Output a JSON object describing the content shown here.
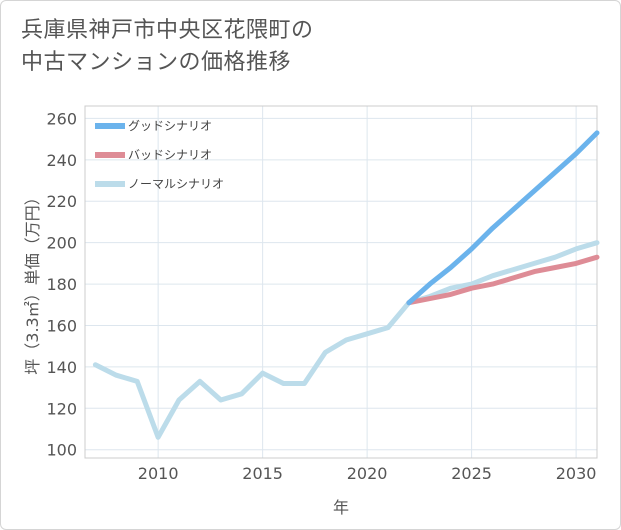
{
  "title_lines": [
    "兵庫県神戸市中央区花隈町の",
    "中古マンションの価格推移"
  ],
  "chart_data": {
    "type": "line",
    "title": "兵庫県神戸市中央区花隈町の中古マンションの価格推移",
    "xlabel": "年",
    "ylabel": "坪（3.3㎡）単価（万円）",
    "xlim": [
      2006.5,
      2031
    ],
    "ylim": [
      96,
      266
    ],
    "xticks": [
      2010,
      2015,
      2020,
      2025,
      2030
    ],
    "yticks": [
      100,
      120,
      140,
      160,
      180,
      200,
      220,
      240,
      260
    ],
    "grid": true,
    "legend_position": "top-left",
    "series": [
      {
        "name": "グッドシナリオ",
        "color": "#6bb3ec",
        "x": [
          2022,
          2023,
          2024,
          2025,
          2026,
          2027,
          2028,
          2029,
          2030,
          2031
        ],
        "values": [
          171,
          180,
          188,
          197,
          207,
          216,
          225,
          234,
          243,
          253
        ]
      },
      {
        "name": "バッドシナリオ",
        "color": "#de8c96",
        "x": [
          2022,
          2023,
          2024,
          2025,
          2026,
          2027,
          2028,
          2029,
          2030,
          2031
        ],
        "values": [
          171,
          173,
          175,
          178,
          180,
          183,
          186,
          188,
          190,
          193
        ]
      },
      {
        "name": "ノーマルシナリオ",
        "color": "#bcdcea",
        "x": [
          2007,
          2008,
          2009,
          2010,
          2011,
          2012,
          2013,
          2014,
          2015,
          2016,
          2017,
          2018,
          2019,
          2020,
          2021,
          2022,
          2023,
          2024,
          2025,
          2026,
          2027,
          2028,
          2029,
          2030,
          2031
        ],
        "values": [
          141,
          136,
          133,
          106,
          124,
          133,
          124,
          127,
          137,
          132,
          132,
          147,
          153,
          156,
          159,
          171,
          174,
          178,
          180,
          184,
          187,
          190,
          193,
          197,
          200
        ]
      }
    ]
  }
}
